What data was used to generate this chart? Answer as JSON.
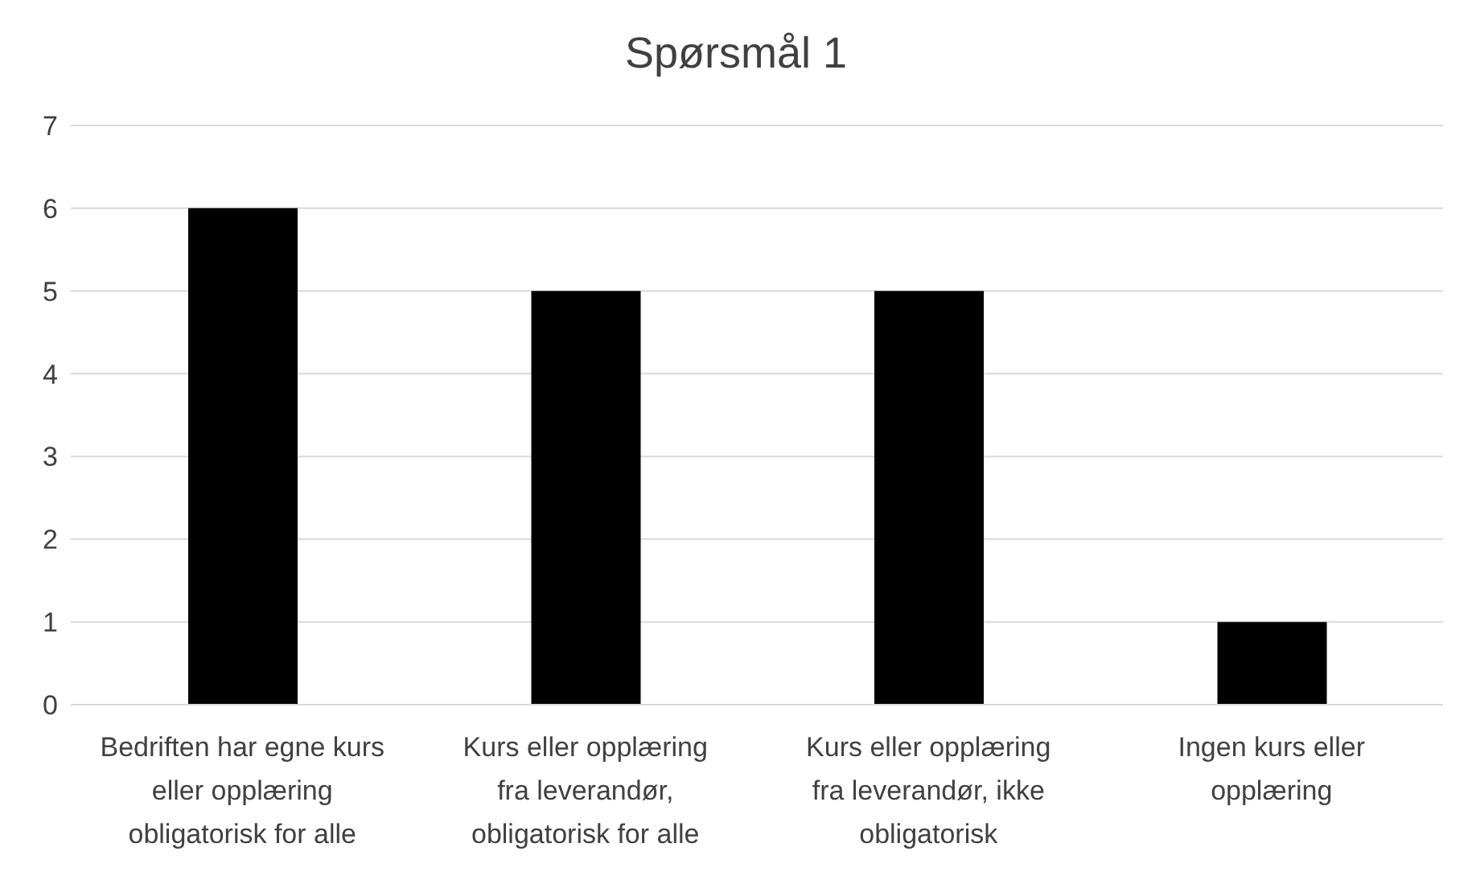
{
  "chart_data": {
    "type": "bar",
    "title": "Spørsmål 1",
    "categories": [
      "Bedriften har egne kurs eller opplæring obligatorisk for alle",
      "Kurs eller opplæring fra leverandør, obligatorisk for alle",
      "Kurs eller opplæring fra leverandør, ikke obligatorisk",
      "Ingen kurs eller opplæring"
    ],
    "values": [
      6,
      5,
      5,
      1
    ],
    "color": "#000000",
    "ylim": [
      0,
      7
    ],
    "yticks": [
      0,
      1,
      2,
      3,
      4,
      5,
      6,
      7
    ],
    "grid": "y"
  }
}
